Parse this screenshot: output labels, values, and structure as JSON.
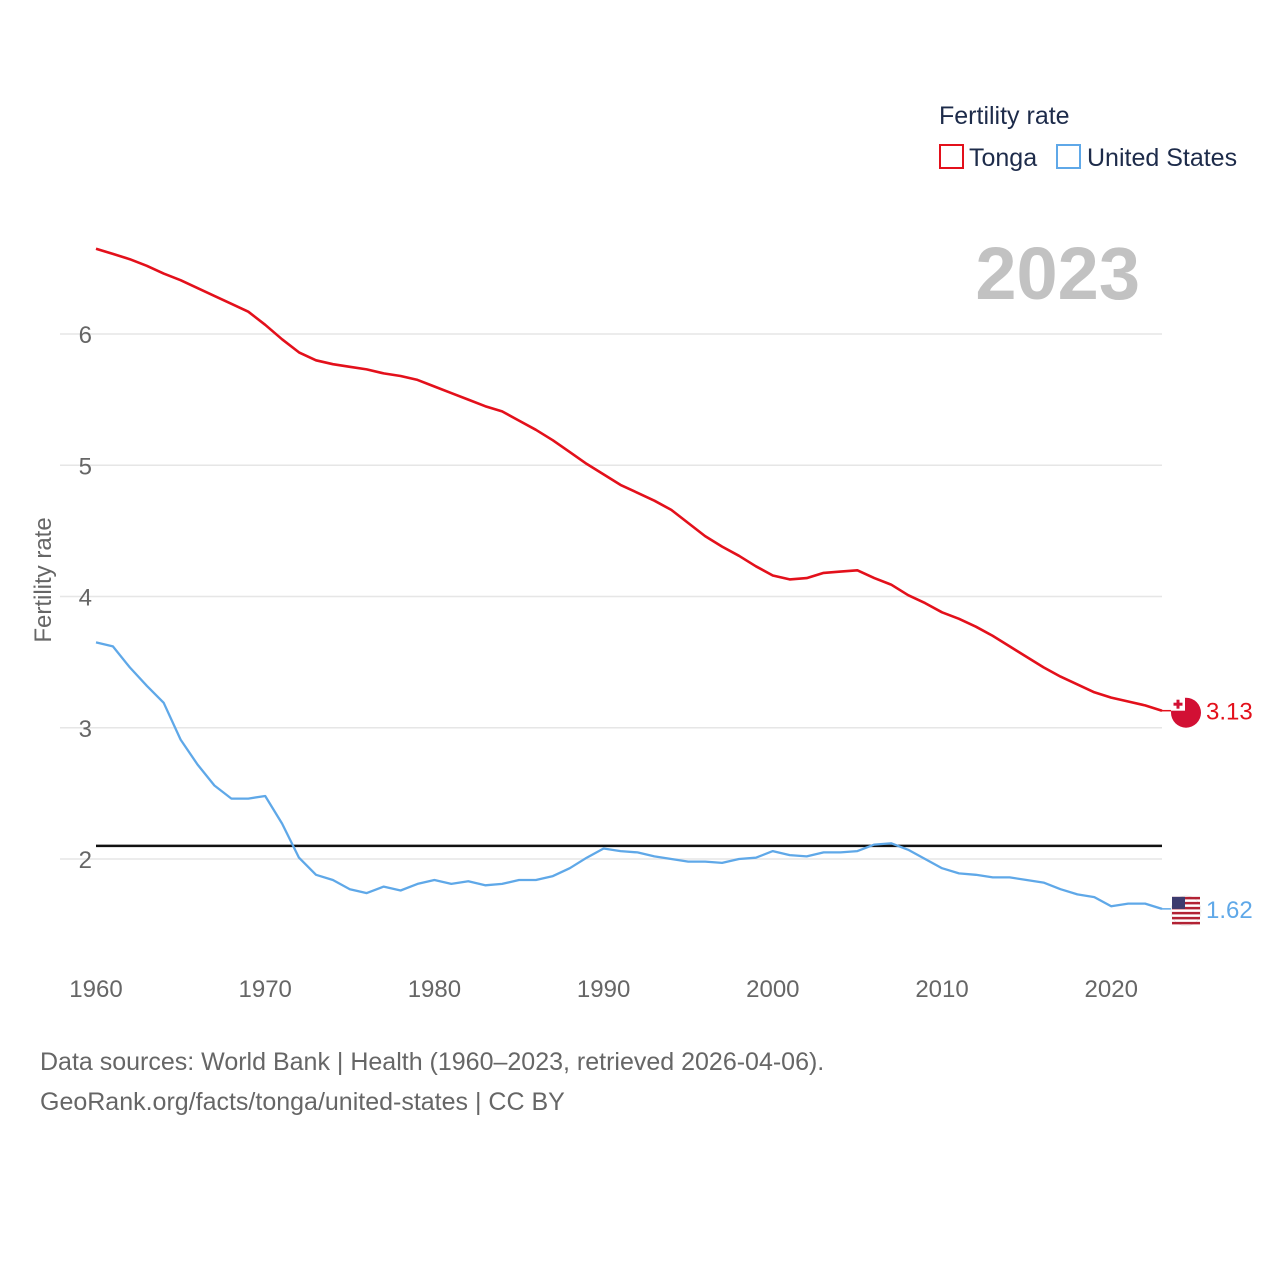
{
  "chart_data": {
    "type": "line",
    "legend": {
      "title": "Fertility rate",
      "position": "top-right"
    },
    "year_label": "2023",
    "ylabel": "Fertility rate",
    "xlabel": "",
    "xlim": [
      1960,
      2023
    ],
    "ylim": [
      1.3,
      6.9
    ],
    "x_ticks": [
      1960,
      1970,
      1980,
      1990,
      2000,
      2010,
      2020
    ],
    "y_ticks": [
      2,
      3,
      4,
      5,
      6
    ],
    "reference_line": {
      "value": 2.1
    },
    "series": [
      {
        "name": "Tonga",
        "color": "#e3101b",
        "end_label": "3.13",
        "icon": "tonga-flag-icon",
        "x": [
          1960,
          1961,
          1962,
          1963,
          1964,
          1965,
          1966,
          1967,
          1968,
          1969,
          1970,
          1971,
          1972,
          1973,
          1974,
          1975,
          1976,
          1977,
          1978,
          1979,
          1980,
          1981,
          1982,
          1983,
          1984,
          1985,
          1986,
          1987,
          1988,
          1989,
          1990,
          1991,
          1992,
          1993,
          1994,
          1995,
          1996,
          1997,
          1998,
          1999,
          2000,
          2001,
          2002,
          2003,
          2004,
          2005,
          2006,
          2007,
          2008,
          2009,
          2010,
          2011,
          2012,
          2013,
          2014,
          2015,
          2016,
          2017,
          2018,
          2019,
          2020,
          2021,
          2022,
          2023
        ],
        "values": [
          6.65,
          6.61,
          6.57,
          6.52,
          6.46,
          6.41,
          6.35,
          6.29,
          6.23,
          6.17,
          6.07,
          5.96,
          5.86,
          5.8,
          5.77,
          5.75,
          5.73,
          5.7,
          5.68,
          5.65,
          5.6,
          5.55,
          5.5,
          5.45,
          5.41,
          5.34,
          5.27,
          5.19,
          5.1,
          5.01,
          4.93,
          4.85,
          4.79,
          4.73,
          4.66,
          4.56,
          4.46,
          4.38,
          4.31,
          4.23,
          4.16,
          4.13,
          4.14,
          4.18,
          4.19,
          4.2,
          4.14,
          4.09,
          4.01,
          3.95,
          3.88,
          3.83,
          3.77,
          3.7,
          3.62,
          3.54,
          3.46,
          3.39,
          3.33,
          3.27,
          3.23,
          3.2,
          3.17,
          3.13
        ]
      },
      {
        "name": "United States",
        "color": "#5fa8e8",
        "end_label": "1.62",
        "icon": "united-states-flag-icon",
        "x": [
          1960,
          1961,
          1962,
          1963,
          1964,
          1965,
          1966,
          1967,
          1968,
          1969,
          1970,
          1971,
          1972,
          1973,
          1974,
          1975,
          1976,
          1977,
          1978,
          1979,
          1980,
          1981,
          1982,
          1983,
          1984,
          1985,
          1986,
          1987,
          1988,
          1989,
          1990,
          1991,
          1992,
          1993,
          1994,
          1995,
          1996,
          1997,
          1998,
          1999,
          2000,
          2001,
          2002,
          2003,
          2004,
          2005,
          2006,
          2007,
          2008,
          2009,
          2010,
          2011,
          2012,
          2013,
          2014,
          2015,
          2016,
          2017,
          2018,
          2019,
          2020,
          2021,
          2022,
          2023
        ],
        "values": [
          3.65,
          3.62,
          3.46,
          3.32,
          3.19,
          2.91,
          2.72,
          2.56,
          2.46,
          2.46,
          2.48,
          2.27,
          2.01,
          1.88,
          1.84,
          1.77,
          1.74,
          1.79,
          1.76,
          1.81,
          1.84,
          1.81,
          1.83,
          1.8,
          1.81,
          1.84,
          1.84,
          1.87,
          1.93,
          2.01,
          2.08,
          2.06,
          2.05,
          2.02,
          2.0,
          1.98,
          1.98,
          1.97,
          2.0,
          2.01,
          2.06,
          2.03,
          2.02,
          2.05,
          2.05,
          2.06,
          2.11,
          2.12,
          2.07,
          2.0,
          1.93,
          1.89,
          1.88,
          1.86,
          1.86,
          1.84,
          1.82,
          1.77,
          1.73,
          1.71,
          1.64,
          1.66,
          1.66,
          1.62
        ]
      }
    ]
  },
  "footer": {
    "sources": "Data sources: World Bank | Health (1960–2023, retrieved 2026-04-06).",
    "credit": "GeoRank.org/facts/tonga/united-states | CC BY"
  }
}
